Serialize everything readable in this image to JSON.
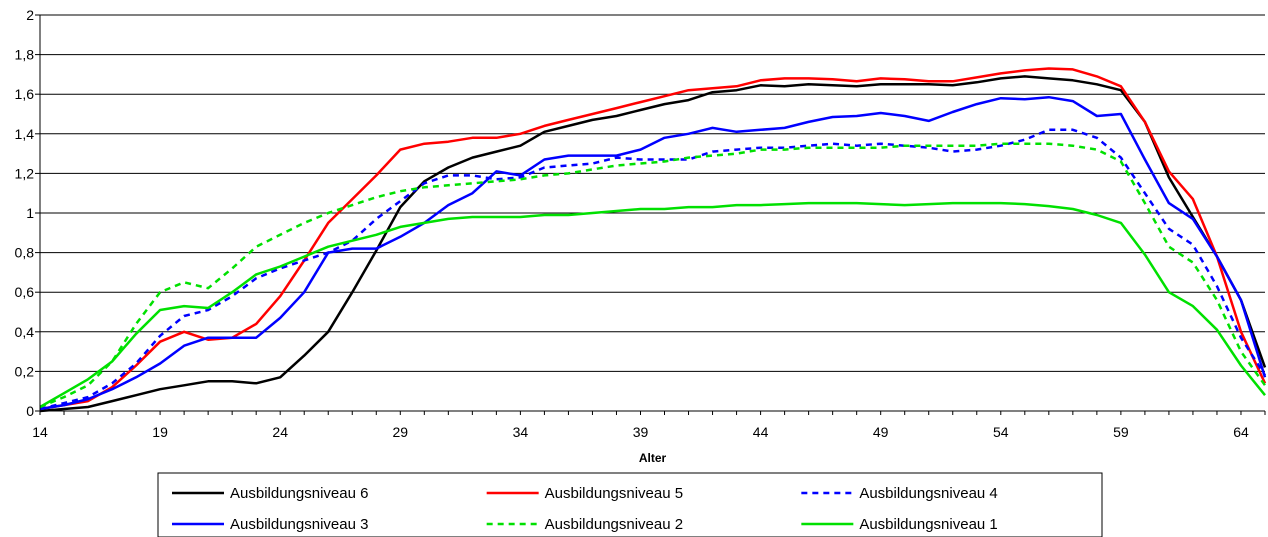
{
  "chart_data": {
    "type": "line",
    "xlabel": "Alter",
    "ylabel": "",
    "xlim": [
      14,
      65
    ],
    "ylim": [
      0,
      2
    ],
    "grid": true,
    "legend_position": "bottom",
    "x_ticks": [
      "14",
      "19",
      "24",
      "29",
      "34",
      "39",
      "44",
      "49",
      "54",
      "59",
      "64"
    ],
    "y_ticks": [
      "0",
      "0,2",
      "0,4",
      "0,6",
      "0,8",
      "1",
      "1,2",
      "1,4",
      "1,6",
      "1,8",
      "2"
    ],
    "x": [
      14,
      15,
      16,
      17,
      18,
      19,
      20,
      21,
      22,
      23,
      24,
      25,
      26,
      27,
      28,
      29,
      30,
      31,
      32,
      33,
      34,
      35,
      36,
      37,
      38,
      39,
      40,
      41,
      42,
      43,
      44,
      45,
      46,
      47,
      48,
      49,
      50,
      51,
      52,
      53,
      54,
      55,
      56,
      57,
      58,
      59,
      60,
      61,
      62,
      63,
      64,
      65
    ],
    "series": [
      {
        "name": "Ausbildungsniveau 6",
        "color": "#000000",
        "dash": "solid",
        "values": [
          0.0,
          0.01,
          0.02,
          0.05,
          0.08,
          0.11,
          0.13,
          0.15,
          0.15,
          0.14,
          0.17,
          0.28,
          0.4,
          0.6,
          0.81,
          1.03,
          1.16,
          1.23,
          1.28,
          1.31,
          1.34,
          1.41,
          1.44,
          1.47,
          1.49,
          1.52,
          1.55,
          1.57,
          1.61,
          1.62,
          1.645,
          1.64,
          1.65,
          1.645,
          1.64,
          1.65,
          1.65,
          1.65,
          1.645,
          1.66,
          1.68,
          1.69,
          1.68,
          1.67,
          1.65,
          1.62,
          1.46,
          1.18,
          0.98,
          0.78,
          0.56,
          0.22
        ]
      },
      {
        "name": "Ausbildungsniveau 5",
        "color": "#ff0000",
        "dash": "solid",
        "values": [
          0.01,
          0.03,
          0.05,
          0.12,
          0.23,
          0.35,
          0.4,
          0.36,
          0.37,
          0.44,
          0.58,
          0.76,
          0.95,
          1.07,
          1.19,
          1.32,
          1.35,
          1.36,
          1.38,
          1.38,
          1.4,
          1.44,
          1.47,
          1.5,
          1.53,
          1.56,
          1.59,
          1.62,
          1.63,
          1.64,
          1.67,
          1.68,
          1.68,
          1.675,
          1.665,
          1.68,
          1.675,
          1.665,
          1.665,
          1.685,
          1.705,
          1.72,
          1.73,
          1.725,
          1.69,
          1.64,
          1.46,
          1.21,
          1.07,
          0.78,
          0.4,
          0.14
        ]
      },
      {
        "name": "Ausbildungsniveau 4",
        "color": "#0000ff",
        "dash": "dash",
        "values": [
          0.01,
          0.04,
          0.07,
          0.14,
          0.24,
          0.38,
          0.48,
          0.51,
          0.58,
          0.67,
          0.72,
          0.76,
          0.8,
          0.86,
          0.97,
          1.06,
          1.15,
          1.19,
          1.19,
          1.17,
          1.18,
          1.23,
          1.24,
          1.25,
          1.28,
          1.27,
          1.27,
          1.27,
          1.31,
          1.32,
          1.33,
          1.33,
          1.34,
          1.35,
          1.34,
          1.35,
          1.34,
          1.33,
          1.31,
          1.32,
          1.34,
          1.37,
          1.42,
          1.42,
          1.38,
          1.28,
          1.1,
          0.92,
          0.84,
          0.63,
          0.37,
          0.18
        ]
      },
      {
        "name": "Ausbildungsniveau 3",
        "color": "#0000ff",
        "dash": "solid",
        "values": [
          0.01,
          0.03,
          0.06,
          0.11,
          0.17,
          0.24,
          0.33,
          0.37,
          0.37,
          0.37,
          0.47,
          0.6,
          0.8,
          0.82,
          0.82,
          0.88,
          0.95,
          1.04,
          1.1,
          1.21,
          1.19,
          1.27,
          1.29,
          1.29,
          1.29,
          1.32,
          1.38,
          1.4,
          1.43,
          1.41,
          1.42,
          1.43,
          1.46,
          1.485,
          1.49,
          1.505,
          1.49,
          1.465,
          1.51,
          1.55,
          1.58,
          1.575,
          1.585,
          1.565,
          1.49,
          1.5,
          1.27,
          1.05,
          0.97,
          0.78,
          0.56,
          0.17
        ]
      },
      {
        "name": "Ausbildungsniveau 2",
        "color": "#00e000",
        "dash": "dash",
        "values": [
          0.02,
          0.07,
          0.13,
          0.25,
          0.44,
          0.6,
          0.65,
          0.62,
          0.72,
          0.83,
          0.89,
          0.95,
          1.0,
          1.04,
          1.08,
          1.11,
          1.13,
          1.14,
          1.15,
          1.16,
          1.17,
          1.19,
          1.2,
          1.22,
          1.24,
          1.25,
          1.26,
          1.28,
          1.29,
          1.3,
          1.32,
          1.32,
          1.33,
          1.33,
          1.33,
          1.33,
          1.34,
          1.34,
          1.34,
          1.34,
          1.35,
          1.35,
          1.35,
          1.34,
          1.32,
          1.26,
          1.05,
          0.83,
          0.75,
          0.56,
          0.3,
          0.13
        ]
      },
      {
        "name": "Ausbildungsniveau 1",
        "color": "#00e000",
        "dash": "solid",
        "values": [
          0.02,
          0.09,
          0.16,
          0.25,
          0.39,
          0.51,
          0.53,
          0.52,
          0.6,
          0.69,
          0.73,
          0.78,
          0.83,
          0.86,
          0.89,
          0.93,
          0.95,
          0.97,
          0.98,
          0.98,
          0.98,
          0.99,
          0.99,
          1.0,
          1.01,
          1.02,
          1.02,
          1.03,
          1.03,
          1.04,
          1.04,
          1.045,
          1.05,
          1.05,
          1.05,
          1.045,
          1.04,
          1.045,
          1.05,
          1.05,
          1.05,
          1.045,
          1.035,
          1.02,
          0.99,
          0.95,
          0.79,
          0.6,
          0.53,
          0.41,
          0.23,
          0.08
        ]
      }
    ]
  }
}
